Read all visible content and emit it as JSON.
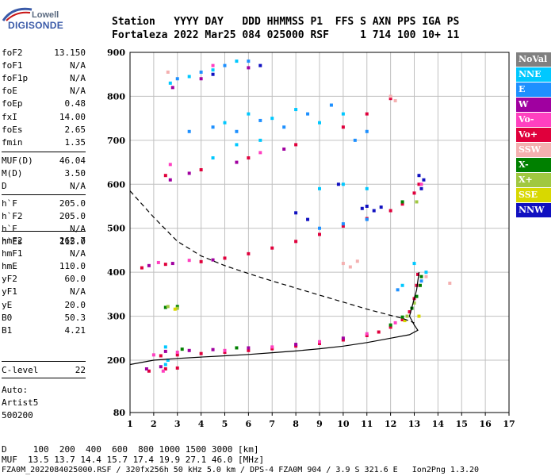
{
  "logo": {
    "top": "Lowell",
    "bottom": "DIGISONDE"
  },
  "header": {
    "line1": "Station   YYYY DAY   DDD HHMMSS P1  FFS S AXN PPS IGA PS",
    "line2": "Fortaleza 2022 Mar25 084 025000 RSF     1 714 100 10+ 11"
  },
  "sidebar": {
    "group1": [
      {
        "label": "foF2",
        "value": "13.150"
      },
      {
        "label": "foF1",
        "value": "N/A"
      },
      {
        "label": "foF1p",
        "value": "N/A"
      },
      {
        "label": "foE",
        "value": "N/A"
      },
      {
        "label": "foEp",
        "value": "0.48"
      },
      {
        "label": "fxI",
        "value": "14.00"
      },
      {
        "label": "foEs",
        "value": "2.65"
      },
      {
        "label": "fmin",
        "value": "1.35"
      }
    ],
    "group2": [
      {
        "label": "MUF(D)",
        "value": "46.04"
      },
      {
        "label": "M(D)",
        "value": "3.50"
      },
      {
        "label": "D",
        "value": "N/A"
      }
    ],
    "group3": [
      {
        "label": "h`F",
        "value": "205.0"
      },
      {
        "label": "h`F2",
        "value": "205.0"
      },
      {
        "label": "h`E",
        "value": "N/A"
      },
      {
        "label": "h`Es",
        "value": "115.0"
      }
    ],
    "group4": [
      {
        "label": "hmF2",
        "value": "262.7"
      },
      {
        "label": "hmF1",
        "value": "N/A"
      },
      {
        "label": "hmE",
        "value": "110.0"
      },
      {
        "label": "yF2",
        "value": "60.0"
      },
      {
        "label": "yF1",
        "value": "N/A"
      },
      {
        "label": "yE",
        "value": "20.0"
      },
      {
        "label": "B0",
        "value": "50.3"
      },
      {
        "label": "B1",
        "value": "4.21"
      }
    ],
    "group5": [
      {
        "label": "C-level",
        "value": "22"
      }
    ],
    "auto": [
      "Auto:",
      "Artist5",
      "500200"
    ]
  },
  "legend": [
    {
      "label": "NoVal",
      "bg": "#808080",
      "fg": "#ffffff"
    },
    {
      "label": "NNE",
      "bg": "#00c8ff",
      "fg": "#ffffff"
    },
    {
      "label": "E",
      "bg": "#1e90ff",
      "fg": "#ffffff"
    },
    {
      "label": "W",
      "bg": "#a000a0",
      "fg": "#ffffff"
    },
    {
      "label": "Vo-",
      "bg": "#ff40c0",
      "fg": "#ffffff"
    },
    {
      "label": "Vo+",
      "bg": "#e0003c",
      "fg": "#ffffff"
    },
    {
      "label": "SSW",
      "bg": "#f4b0b0",
      "fg": "#ffffff"
    },
    {
      "label": "X-",
      "bg": "#008000",
      "fg": "#ffffff"
    },
    {
      "label": "X+",
      "bg": "#a0c840",
      "fg": "#ffffff"
    },
    {
      "label": "SSE",
      "bg": "#d8d800",
      "fg": "#ffffff"
    },
    {
      "label": "NNW",
      "bg": "#1010c0",
      "fg": "#ffffff"
    }
  ],
  "footer": {
    "line1": "D     100  200  400  600  800 1000 1500 3000 [km]",
    "line2": "MUF  13.5 13.7 14.4 15.7 17.4 19.9 27.1 46.0 [MHz]",
    "line3": "FZA0M_2022084025000.RSF / 320fx256h 50 kHz 5.0 km / DPS-4 FZA0M 904 / 3.9 S 321.6 E   Ion2Png 1.3.20"
  },
  "chart_data": {
    "type": "scatter",
    "xlim": [
      1,
      17
    ],
    "ylim": [
      80,
      900
    ],
    "x_ticks": [
      1,
      2,
      3,
      4,
      5,
      6,
      7,
      8,
      9,
      10,
      11,
      12,
      13,
      14,
      15,
      16,
      17
    ],
    "y_ticks": [
      80,
      200,
      300,
      400,
      500,
      600,
      700,
      800,
      900
    ],
    "grid": true,
    "series": [
      {
        "name": "Vo+",
        "color": "#e0003c",
        "points": [
          [
            2.3,
            210
          ],
          [
            3.0,
            212
          ],
          [
            4.0,
            215
          ],
          [
            5.0,
            218
          ],
          [
            6.0,
            222
          ],
          [
            7.0,
            226
          ],
          [
            8.0,
            232
          ],
          [
            9.0,
            238
          ],
          [
            10.0,
            246
          ],
          [
            11.0,
            256
          ],
          [
            11.5,
            264
          ],
          [
            12.0,
            275
          ],
          [
            12.5,
            292
          ],
          [
            12.8,
            310
          ],
          [
            13.0,
            340
          ],
          [
            13.1,
            370
          ],
          [
            13.15,
            395
          ],
          [
            1.5,
            410
          ],
          [
            2.5,
            418
          ],
          [
            4.0,
            424
          ],
          [
            5.0,
            432
          ],
          [
            6.0,
            442
          ],
          [
            7.0,
            455
          ],
          [
            8.0,
            470
          ],
          [
            9.0,
            486
          ],
          [
            10.0,
            505
          ],
          [
            11.0,
            522
          ],
          [
            12.0,
            540
          ],
          [
            12.5,
            555
          ],
          [
            13.0,
            580
          ],
          [
            13.2,
            600
          ],
          [
            2.5,
            620
          ],
          [
            4.0,
            633
          ],
          [
            6.0,
            660
          ],
          [
            8.0,
            690
          ],
          [
            10.0,
            730
          ],
          [
            11.0,
            760
          ],
          [
            12.0,
            795
          ],
          [
            1.8,
            175
          ],
          [
            2.5,
            180
          ],
          [
            3.0,
            182
          ]
        ]
      },
      {
        "name": "X-",
        "color": "#008000",
        "points": [
          [
            12.0,
            280
          ],
          [
            12.5,
            298
          ],
          [
            12.9,
            318
          ],
          [
            13.1,
            345
          ],
          [
            13.25,
            370
          ],
          [
            13.3,
            390
          ],
          [
            2.5,
            320
          ],
          [
            3.0,
            322
          ],
          [
            12.5,
            560
          ],
          [
            3.2,
            225
          ],
          [
            5.5,
            228
          ]
        ]
      },
      {
        "name": "W",
        "color": "#a000a0",
        "points": [
          [
            2.5,
            220
          ],
          [
            3.5,
            222
          ],
          [
            4.5,
            224
          ],
          [
            6.0,
            228
          ],
          [
            8.0,
            236
          ],
          [
            10.0,
            250
          ],
          [
            1.8,
            415
          ],
          [
            2.8,
            420
          ],
          [
            4.5,
            428
          ],
          [
            2.7,
            610
          ],
          [
            3.5,
            625
          ],
          [
            5.5,
            650
          ],
          [
            7.5,
            680
          ],
          [
            2.8,
            820
          ],
          [
            4.0,
            840
          ],
          [
            6.0,
            865
          ],
          [
            1.7,
            180
          ],
          [
            2.3,
            185
          ]
        ]
      },
      {
        "name": "NNE",
        "color": "#00c8ff",
        "points": [
          [
            2.6,
            200
          ],
          [
            2.5,
            230
          ],
          [
            12.5,
            370
          ],
          [
            13.0,
            420
          ],
          [
            13.5,
            400
          ],
          [
            9.0,
            590
          ],
          [
            10.0,
            600
          ],
          [
            11.0,
            590
          ],
          [
            5.0,
            740
          ],
          [
            6.0,
            760
          ],
          [
            7.0,
            750
          ],
          [
            8.0,
            770
          ],
          [
            9.0,
            740
          ],
          [
            10.0,
            760
          ],
          [
            4.5,
            660
          ],
          [
            5.5,
            690
          ],
          [
            6.5,
            700
          ],
          [
            2.7,
            830
          ],
          [
            3.5,
            845
          ],
          [
            4.5,
            860
          ],
          [
            5.5,
            880
          ],
          [
            2.5,
            190
          ]
        ]
      },
      {
        "name": "E",
        "color": "#1e90ff",
        "points": [
          [
            3.5,
            720
          ],
          [
            4.5,
            730
          ],
          [
            5.5,
            720
          ],
          [
            6.5,
            745
          ],
          [
            7.5,
            730
          ],
          [
            8.5,
            760
          ],
          [
            9.5,
            780
          ],
          [
            10.5,
            700
          ],
          [
            11.0,
            720
          ],
          [
            3.0,
            840
          ],
          [
            4.0,
            855
          ],
          [
            5.0,
            870
          ],
          [
            6.0,
            880
          ],
          [
            9.0,
            500
          ],
          [
            10.0,
            510
          ],
          [
            11.0,
            520
          ],
          [
            12.3,
            360
          ],
          [
            13.3,
            380
          ]
        ]
      },
      {
        "name": "NNW",
        "color": "#1010c0",
        "points": [
          [
            10.8,
            545
          ],
          [
            11.0,
            550
          ],
          [
            11.3,
            540
          ],
          [
            11.6,
            548
          ],
          [
            8.0,
            535
          ],
          [
            8.5,
            520
          ],
          [
            13.2,
            620
          ],
          [
            13.4,
            610
          ],
          [
            13.3,
            590
          ],
          [
            9.8,
            600
          ],
          [
            4.5,
            850
          ],
          [
            6.5,
            870
          ]
        ]
      },
      {
        "name": "Vo-",
        "color": "#ff40c0",
        "points": [
          [
            3.0,
            218
          ],
          [
            5.0,
            222
          ],
          [
            7.0,
            230
          ],
          [
            9.0,
            242
          ],
          [
            11.0,
            260
          ],
          [
            12.2,
            285
          ],
          [
            13.3,
            600
          ],
          [
            2.0,
            212
          ],
          [
            2.2,
            422
          ],
          [
            3.5,
            427
          ],
          [
            6.5,
            672
          ],
          [
            2.7,
            645
          ],
          [
            4.5,
            870
          ],
          [
            2.4,
            175
          ]
        ]
      },
      {
        "name": "SSW",
        "color": "#f4b0b0",
        "points": [
          [
            10.0,
            420
          ],
          [
            10.3,
            412
          ],
          [
            10.6,
            425
          ],
          [
            12.0,
            800
          ],
          [
            12.2,
            790
          ],
          [
            13.5,
            390
          ],
          [
            14.5,
            375
          ],
          [
            2.6,
            855
          ]
        ]
      },
      {
        "name": "X+",
        "color": "#a0c840",
        "points": [
          [
            12.7,
            300
          ],
          [
            13.0,
            330
          ],
          [
            2.6,
            322
          ],
          [
            3.0,
            318
          ],
          [
            13.1,
            560
          ]
        ]
      },
      {
        "name": "SSE",
        "color": "#d8d800",
        "points": [
          [
            12.6,
            290
          ],
          [
            13.2,
            300
          ],
          [
            2.9,
            316
          ]
        ]
      }
    ],
    "dashed_profile": [
      [
        1.0,
        585
      ],
      [
        2.0,
        525
      ],
      [
        3.0,
        470
      ],
      [
        4.0,
        437
      ],
      [
        5.0,
        415
      ],
      [
        6.0,
        397
      ],
      [
        7.0,
        380
      ],
      [
        8.0,
        364
      ],
      [
        9.0,
        348
      ],
      [
        10.0,
        332
      ],
      [
        11.0,
        316
      ],
      [
        12.0,
        302
      ],
      [
        12.5,
        295
      ],
      [
        13.0,
        285
      ]
    ],
    "solid_profile": [
      [
        1.0,
        190
      ],
      [
        2.0,
        200
      ],
      [
        3.0,
        204
      ],
      [
        4.0,
        207
      ],
      [
        5.0,
        210
      ],
      [
        6.0,
        213
      ],
      [
        7.0,
        217
      ],
      [
        8.0,
        221
      ],
      [
        9.0,
        226
      ],
      [
        10.0,
        232
      ],
      [
        11.0,
        240
      ],
      [
        12.0,
        250
      ],
      [
        12.8,
        258
      ],
      [
        13.15,
        268
      ],
      [
        13.0,
        280
      ],
      [
        12.8,
        300
      ],
      [
        12.95,
        330
      ],
      [
        13.1,
        360
      ],
      [
        13.2,
        400
      ]
    ]
  }
}
